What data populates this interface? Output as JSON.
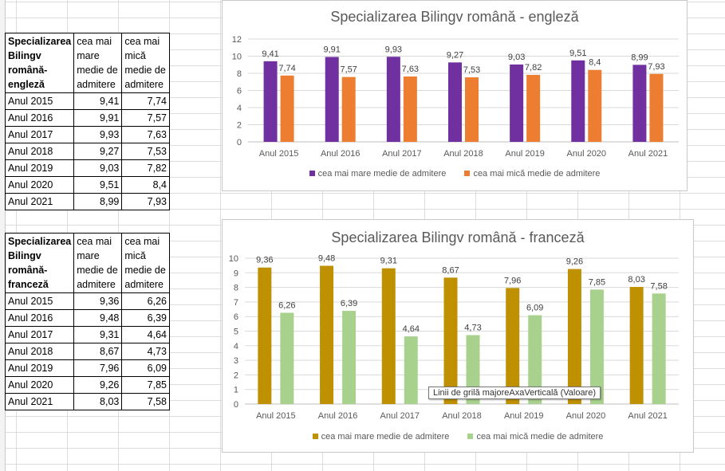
{
  "table_en": {
    "headers": [
      "Specializarea Bilingv română-engleză",
      "cea mai mare medie de admitere",
      "cea mai mică medie de admitere"
    ],
    "rows": [
      [
        "Anul 2015",
        "9,41",
        "7,74"
      ],
      [
        "Anul 2016",
        "9,91",
        "7,57"
      ],
      [
        "Anul 2017",
        "9,93",
        "7,63"
      ],
      [
        "Anul 2018",
        "9,27",
        "7,53"
      ],
      [
        "Anul 2019",
        "9,03",
        "7,82"
      ],
      [
        "Anul 2020",
        "9,51",
        "8,4"
      ],
      [
        "Anul 2021",
        "8,99",
        "7,93"
      ]
    ]
  },
  "table_fr": {
    "headers": [
      "Specializarea Bilingv română-franceză",
      "cea mai mare medie de admitere",
      "cea mai mică medie de admitere"
    ],
    "rows": [
      [
        "Anul 2015",
        "9,36",
        "6,26"
      ],
      [
        "Anul 2016",
        "9,48",
        "6,39"
      ],
      [
        "Anul 2017",
        "9,31",
        "4,64"
      ],
      [
        "Anul 2018",
        "8,67",
        "4,73"
      ],
      [
        "Anul 2019",
        "7,96",
        "6,09"
      ],
      [
        "Anul 2020",
        "9,26",
        "7,85"
      ],
      [
        "Anul 2021",
        "8,03",
        "7,58"
      ]
    ]
  },
  "chart_data": [
    {
      "type": "bar",
      "title": "Specializarea Bilingv română - engleză",
      "categories": [
        "Anul 2015",
        "Anul 2016",
        "Anul 2017",
        "Anul 2018",
        "Anul 2019",
        "Anul 2020",
        "Anul 2021"
      ],
      "series": [
        {
          "name": "cea mai mare medie de admitere",
          "values": [
            9.41,
            9.91,
            9.93,
            9.27,
            9.03,
            9.51,
            8.99
          ],
          "labels": [
            "9,41",
            "9,91",
            "9,93",
            "9,27",
            "9,03",
            "9,51",
            "8,99"
          ],
          "color": "#7030a0"
        },
        {
          "name": "cea mai mică medie de admitere",
          "values": [
            7.74,
            7.57,
            7.63,
            7.53,
            7.82,
            8.4,
            7.93
          ],
          "labels": [
            "7,74",
            "7,57",
            "7,63",
            "7,53",
            "7,82",
            "8,4",
            "7,93"
          ],
          "color": "#ed7d31"
        }
      ],
      "ylim": [
        0,
        12
      ],
      "yticks": [
        0,
        2,
        4,
        6,
        8,
        10,
        12
      ],
      "grid": true,
      "legend": "bottom"
    },
    {
      "type": "bar",
      "title": "Specializarea Bilingv română - franceză",
      "categories": [
        "Anul 2015",
        "Anul 2016",
        "Anul 2017",
        "Anul 2018",
        "Anul 2019",
        "Anul 2020",
        "Anul 2021"
      ],
      "series": [
        {
          "name": "cea mai mare medie de admitere",
          "values": [
            9.36,
            9.48,
            9.31,
            8.67,
            7.96,
            9.26,
            8.03
          ],
          "labels": [
            "9,36",
            "9,48",
            "9,31",
            "8,67",
            "7,96",
            "9,26",
            "8,03"
          ],
          "color": "#bf9000"
        },
        {
          "name": "cea mai mică medie de admitere",
          "values": [
            6.26,
            6.39,
            4.64,
            4.73,
            6.09,
            7.85,
            7.58
          ],
          "labels": [
            "6,26",
            "6,39",
            "4,64",
            "4,73",
            "6,09",
            "7,85",
            "7,58"
          ],
          "color": "#a9d18e"
        }
      ],
      "ylim": [
        0,
        10
      ],
      "yticks": [
        0,
        1,
        2,
        3,
        4,
        5,
        6,
        7,
        8,
        9,
        10
      ],
      "grid": true,
      "legend": "bottom"
    }
  ],
  "tooltip": "Linii de grilă majoreAxaVerticală (Valoare)"
}
